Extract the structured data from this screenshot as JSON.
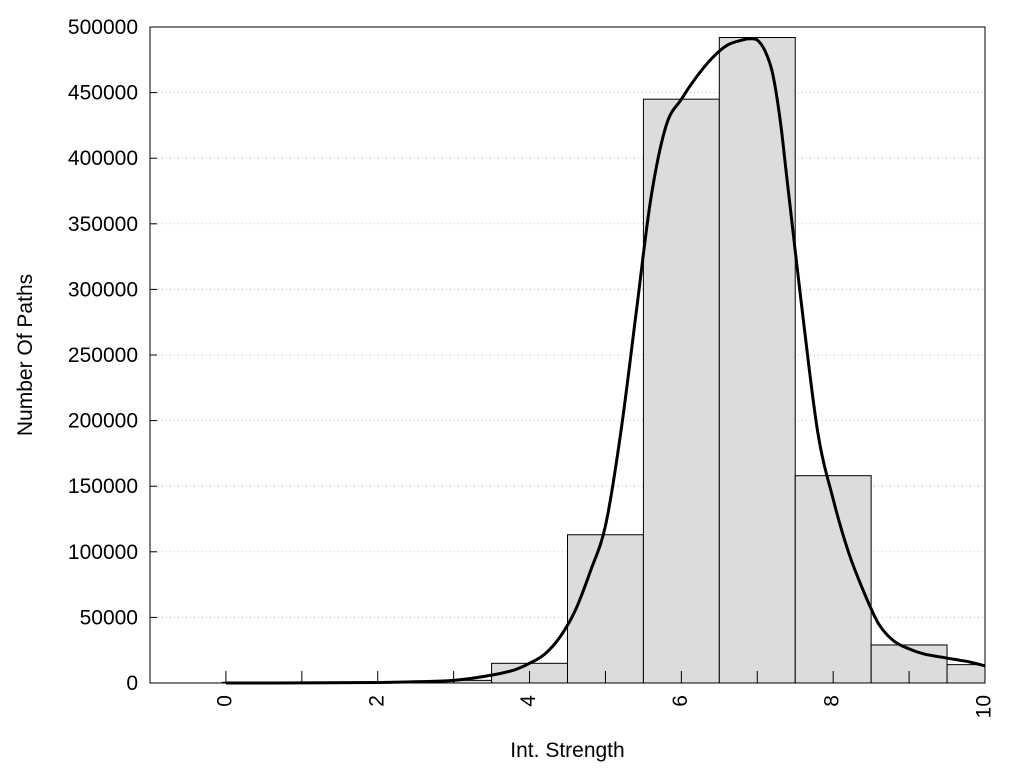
{
  "chart_data": {
    "type": "bar",
    "xlabel": "Int. Strength",
    "ylabel": "Number Of Paths",
    "xlim": [
      -1,
      10
    ],
    "ylim": [
      0,
      500000
    ],
    "x_ticks": [
      0,
      2,
      4,
      6,
      8,
      10
    ],
    "y_ticks": [
      0,
      50000,
      100000,
      150000,
      200000,
      250000,
      300000,
      350000,
      400000,
      450000,
      500000
    ],
    "grid": "horizontal dotted",
    "bar_color": "#dcdcdc",
    "bars": [
      {
        "x_start": -0.05,
        "x_end": 0.5,
        "value": 500
      },
      {
        "x_start": 0.5,
        "x_end": 1.0,
        "value": 600
      },
      {
        "x_start": 1.0,
        "x_end": 1.5,
        "value": 700
      },
      {
        "x_start": 1.5,
        "x_end": 2.0,
        "value": 800
      },
      {
        "x_start": 2.0,
        "x_end": 2.5,
        "value": 1000
      },
      {
        "x_start": 2.5,
        "x_end": 3.0,
        "value": 1600
      },
      {
        "x_start": 3.0,
        "x_end": 3.5,
        "value": 2000
      },
      {
        "x_start": 3.5,
        "x_end": 4.5,
        "value": 15000
      },
      {
        "x_start": 4.5,
        "x_end": 5.5,
        "value": 113000
      },
      {
        "x_start": 5.5,
        "x_end": 6.5,
        "value": 445000
      },
      {
        "x_start": 6.5,
        "x_end": 7.5,
        "value": 492000
      },
      {
        "x_start": 7.5,
        "x_end": 8.5,
        "value": 158000
      },
      {
        "x_start": 8.5,
        "x_end": 9.5,
        "value": 29000
      },
      {
        "x_start": 9.5,
        "x_end": 10.0,
        "value": 14000
      }
    ],
    "curve": {
      "x": [
        0,
        1,
        2,
        2.5,
        3,
        3.5,
        3.8,
        4,
        4.2,
        4.4,
        4.6,
        4.8,
        5,
        5.2,
        5.4,
        5.6,
        5.8,
        6,
        6.2,
        6.4,
        6.6,
        6.8,
        6.9,
        7,
        7.1,
        7.2,
        7.3,
        7.4,
        7.6,
        7.8,
        8,
        8.2,
        8.4,
        8.6,
        8.8,
        9,
        9.2,
        9.4,
        9.6,
        9.8,
        10
      ],
      "y": [
        0,
        100,
        400,
        1000,
        2000,
        6000,
        10000,
        15000,
        22000,
        35000,
        55000,
        85000,
        120000,
        190000,
        280000,
        370000,
        425000,
        445000,
        462000,
        476000,
        486000,
        490000,
        491000,
        490000,
        482000,
        465000,
        430000,
        380000,
        280000,
        190000,
        140000,
        100000,
        70000,
        45000,
        32000,
        26000,
        22000,
        20000,
        18000,
        16000,
        13000
      ]
    }
  }
}
